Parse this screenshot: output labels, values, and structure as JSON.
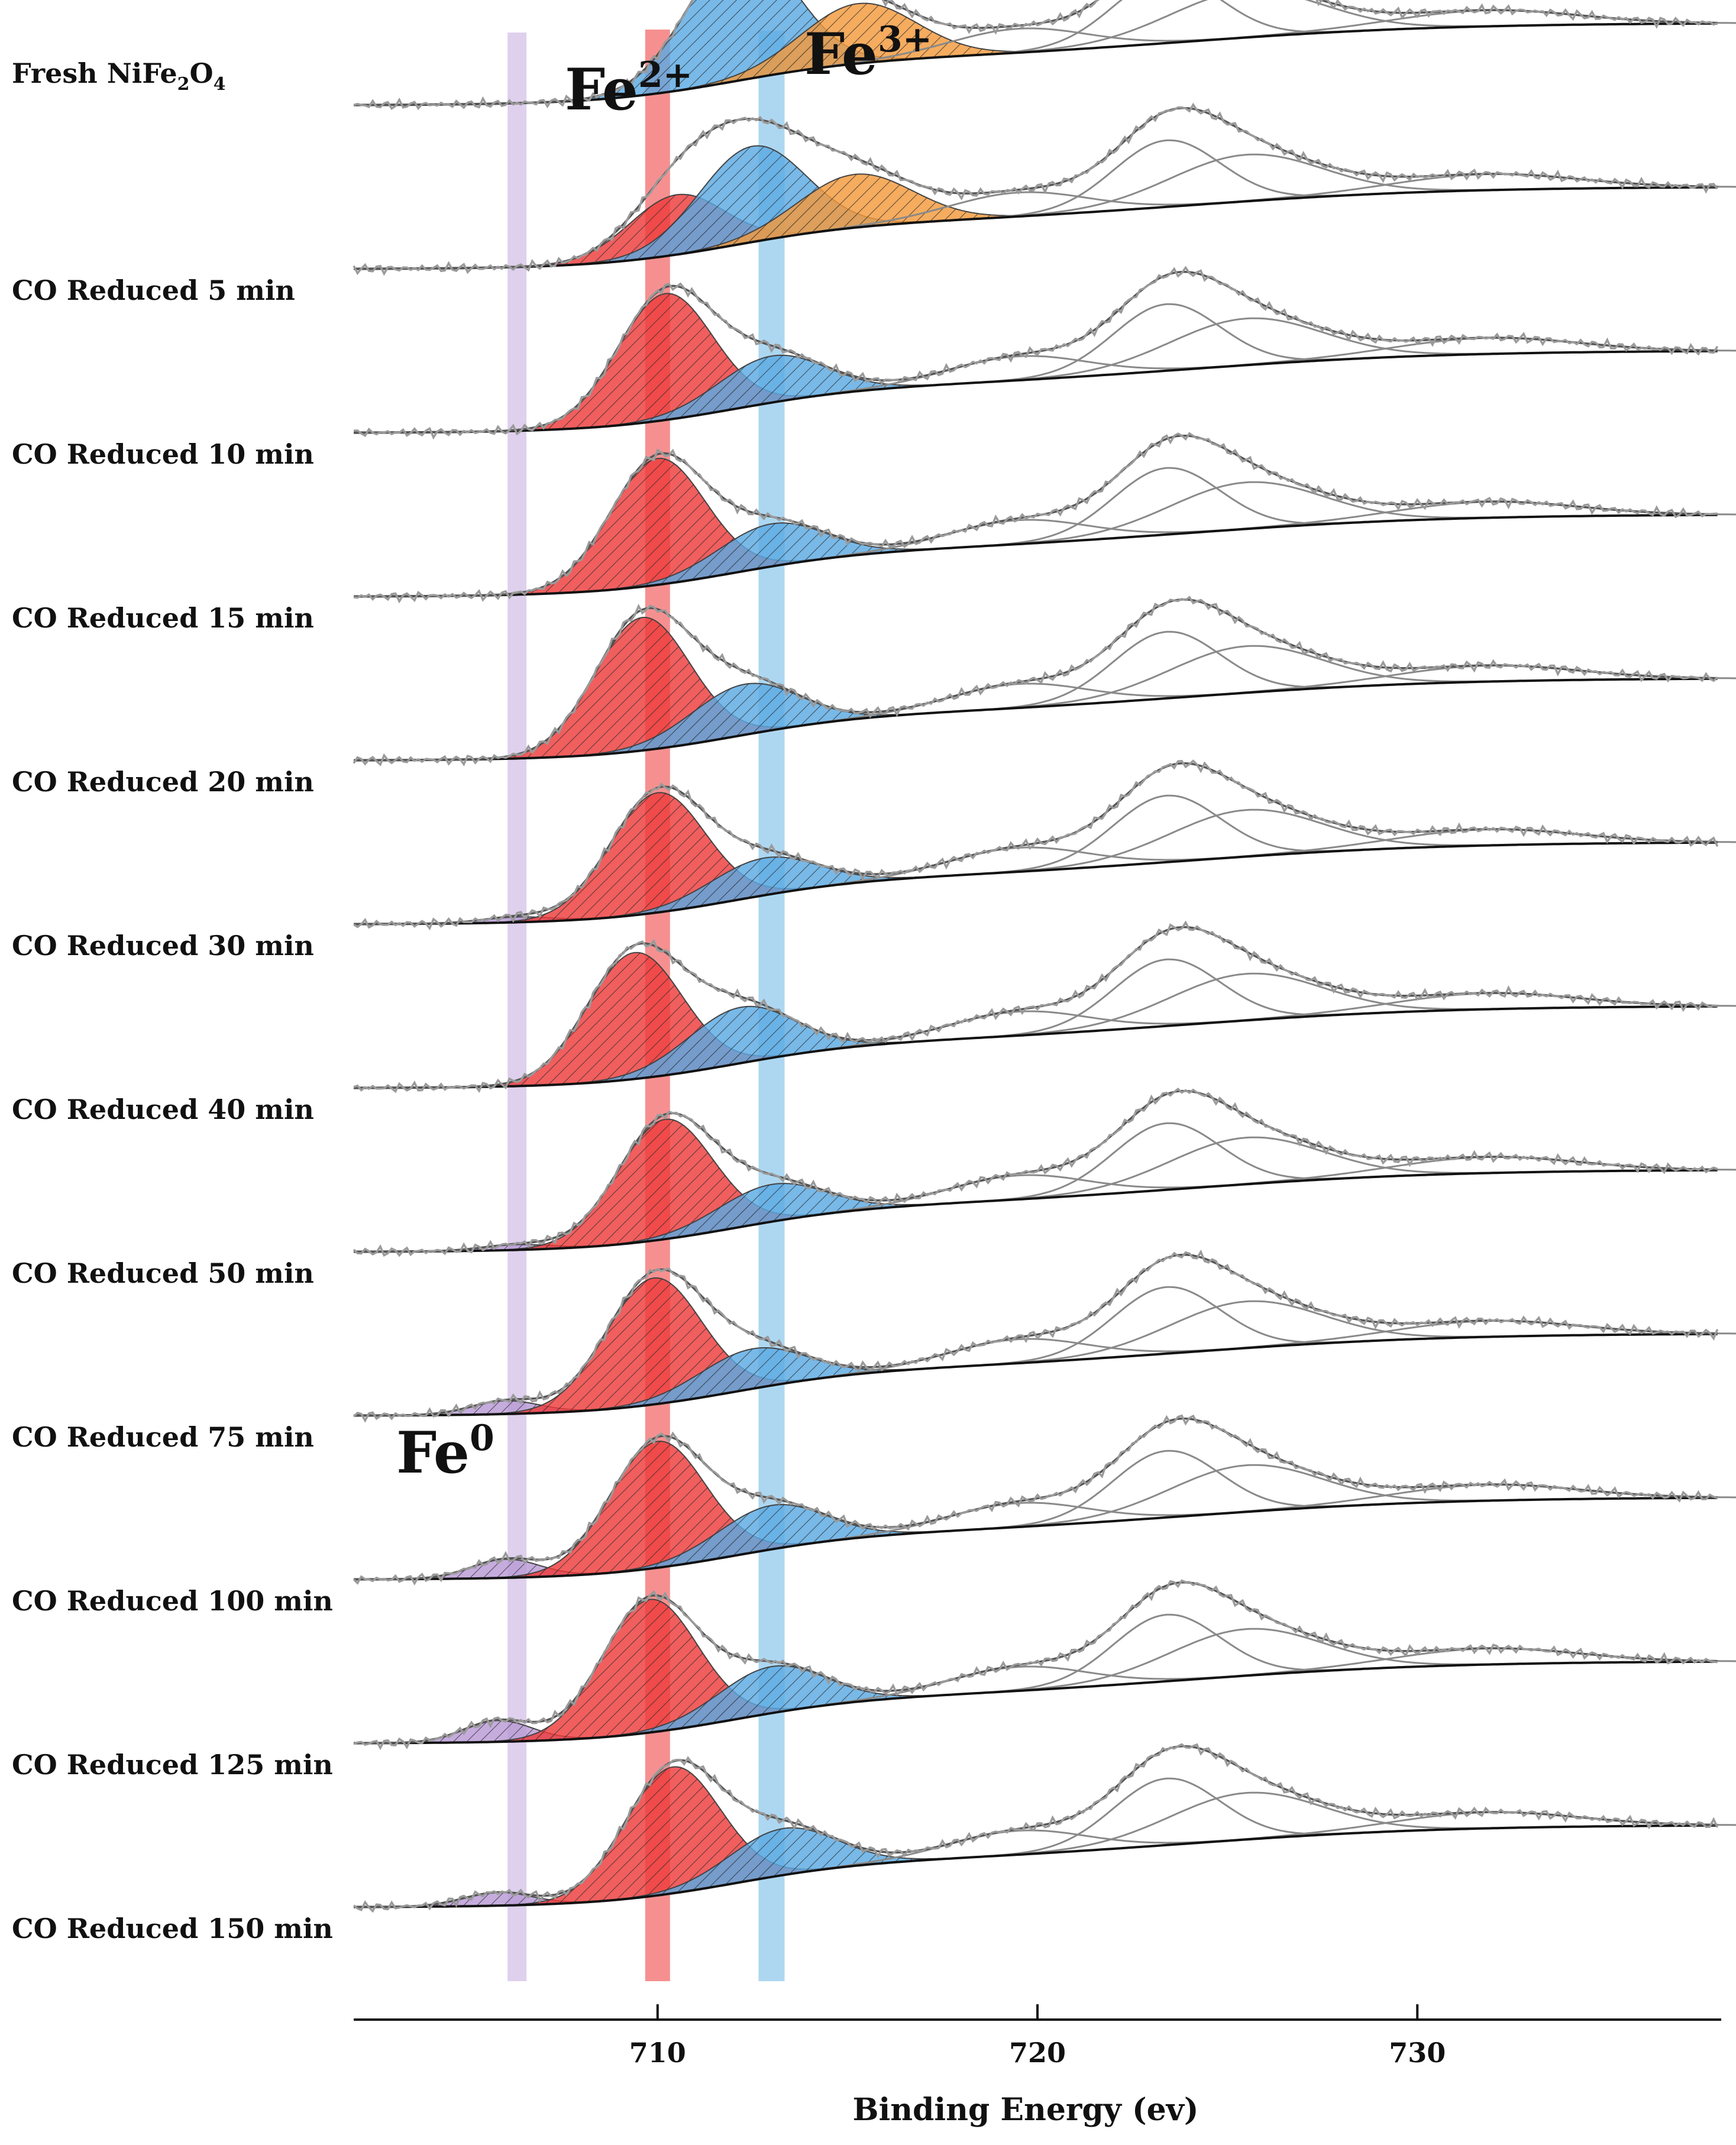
{
  "chart_data": {
    "type": "line",
    "title": "",
    "xlabel": "Binding Energy (ev)",
    "ylabel": "",
    "xlim": [
      702,
      738
    ],
    "xticks": [
      710,
      720,
      730
    ],
    "grid": false,
    "legend": "none",
    "annotations": [
      {
        "name": "fe2",
        "base": "Fe",
        "sup": "2+",
        "x": 710.0
      },
      {
        "name": "fe3",
        "base": "Fe",
        "sup": "3+",
        "x": 713.0
      },
      {
        "name": "fe0",
        "base": "Fe",
        "sup": "0",
        "x": 706.3
      }
    ],
    "component_colors": {
      "fe0": "#b89ad6",
      "fe2": "#ee3b3b",
      "fe3": "#5aa9e3",
      "fe3_satellite": "#f39a3c"
    },
    "band_colors": {
      "fe0": "#d9c8ea",
      "fe2": "#f47d7d",
      "fe3": "#9fd0ef"
    },
    "series": [
      {
        "name": "Fresh NiFe2O4",
        "label_main": "Fresh NiFe",
        "sub1": "2",
        "mid": "O",
        "sub2": "4",
        "fe0": {
          "center": 706.3,
          "amp": 0.0
        },
        "fe2": {
          "center": 710.3,
          "amp": 0.0
        },
        "fe3": {
          "center": 712.2,
          "amp": 1.0
        },
        "fe3_satellite": {
          "center": 715.3,
          "amp": 0.45
        }
      },
      {
        "name": "CO Reduced 5 min",
        "label_main": "CO Reduced 5 min",
        "fe0": {
          "center": 706.3,
          "amp": 0.0
        },
        "fe2": {
          "center": 710.5,
          "amp": 0.45
        },
        "fe3": {
          "center": 712.5,
          "amp": 0.72
        },
        "fe3_satellite": {
          "center": 715.2,
          "amp": 0.4
        }
      },
      {
        "name": "CO Reduced 10 min",
        "label_main": "CO Reduced  10 min",
        "fe0": {
          "center": 706.3,
          "amp": 0.0
        },
        "fe2": {
          "center": 710.2,
          "amp": 0.95
        },
        "fe3": {
          "center": 713.0,
          "amp": 0.35
        },
        "fe3_satellite": {
          "center": 715.5,
          "amp": 0.0
        }
      },
      {
        "name": "CO Reduced 15 min",
        "label_main": "CO Reduced  15 min",
        "fe0": {
          "center": 706.3,
          "amp": 0.0
        },
        "fe2": {
          "center": 710.0,
          "amp": 0.95
        },
        "fe3": {
          "center": 713.0,
          "amp": 0.32
        },
        "fe3_satellite": {
          "center": 715.5,
          "amp": 0.0
        }
      },
      {
        "name": "CO Reduced 20 min",
        "label_main": "CO Reduced 20 min",
        "fe0": {
          "center": 706.3,
          "amp": 0.0
        },
        "fe2": {
          "center": 709.6,
          "amp": 1.0
        },
        "fe3": {
          "center": 712.3,
          "amp": 0.38
        },
        "fe3_satellite": {
          "center": 715.5,
          "amp": 0.0
        }
      },
      {
        "name": "CO Reduced 30 min",
        "label_main": "CO Reduced 30 min",
        "fe0": {
          "center": 706.3,
          "amp": 0.04
        },
        "fe2": {
          "center": 710.0,
          "amp": 0.9
        },
        "fe3": {
          "center": 712.8,
          "amp": 0.28
        },
        "fe3_satellite": {
          "center": 715.5,
          "amp": 0.0
        }
      },
      {
        "name": "CO Reduced 40 min",
        "label_main": "CO Reduced 40 min",
        "fe0": {
          "center": 706.3,
          "amp": 0.0
        },
        "fe2": {
          "center": 709.4,
          "amp": 0.95
        },
        "fe3": {
          "center": 712.2,
          "amp": 0.42
        },
        "fe3_satellite": {
          "center": 715.5,
          "amp": 0.0
        }
      },
      {
        "name": "CO Reduced 50 min",
        "label_main": "CO Reduced 50 min",
        "fe0": {
          "center": 706.3,
          "amp": 0.04
        },
        "fe2": {
          "center": 710.2,
          "amp": 0.9
        },
        "fe3": {
          "center": 713.0,
          "amp": 0.28
        },
        "fe3_satellite": {
          "center": 715.5,
          "amp": 0.0
        }
      },
      {
        "name": "CO Reduced 75 min",
        "label_main": "CO Reduced 75 min",
        "fe0": {
          "center": 706.0,
          "amp": 0.1
        },
        "fe2": {
          "center": 709.9,
          "amp": 0.95
        },
        "fe3": {
          "center": 712.5,
          "amp": 0.3
        },
        "fe3_satellite": {
          "center": 715.5,
          "amp": 0.0
        }
      },
      {
        "name": "CO Reduced 100 min",
        "label_main": "CO Reduced 100 min",
        "fe0": {
          "center": 706.0,
          "amp": 0.14
        },
        "fe2": {
          "center": 710.0,
          "amp": 0.95
        },
        "fe3": {
          "center": 713.0,
          "amp": 0.33
        },
        "fe3_satellite": {
          "center": 715.5,
          "amp": 0.0
        }
      },
      {
        "name": "CO Reduced 125 min",
        "label_main": "CO Reduced 125 min",
        "fe0": {
          "center": 705.8,
          "amp": 0.16
        },
        "fe2": {
          "center": 709.8,
          "amp": 1.0
        },
        "fe3": {
          "center": 713.0,
          "amp": 0.35
        },
        "fe3_satellite": {
          "center": 715.5,
          "amp": 0.0
        }
      },
      {
        "name": "CO Reduced 150 min",
        "label_main": "CO Reduced 150 min",
        "fe0": {
          "center": 705.8,
          "amp": 0.1
        },
        "fe2": {
          "center": 710.4,
          "amp": 0.95
        },
        "fe3": {
          "center": 713.3,
          "amp": 0.35
        },
        "fe3_satellite": {
          "center": 715.5,
          "amp": 0.0
        }
      }
    ]
  }
}
